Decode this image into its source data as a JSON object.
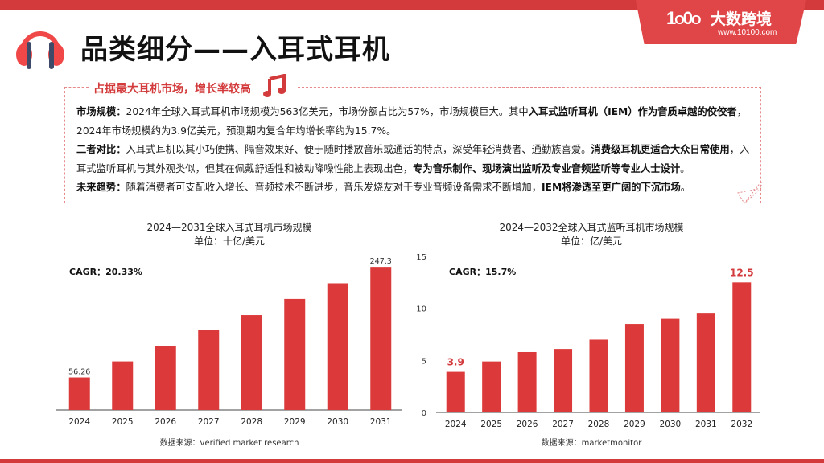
{
  "header": {
    "title": "品类细分——入耳式耳机",
    "icon": "headphones-icon"
  },
  "logo": {
    "mark": "1O0O",
    "name": "大数跨境",
    "url": "www.10100.com"
  },
  "summary": {
    "heading": "占据最大耳机市场，增长率较高",
    "heading_icon": "music-note-icon",
    "lines": [
      {
        "label": "市场规模：",
        "text": "2024年全球入耳式耳机市场规模为563亿美元，市场份额占比为57%，市场规模巨大。其中",
        "bold": "入耳式监听耳机（IEM）作为音质卓越的佼佼者",
        "tail": "，2024年市场规模约为3.9亿美元，预测期内复合年均增长率约为15.7%。"
      },
      {
        "label": "二者对比：",
        "text": "入耳式耳机以其小巧便携、隔音效果好、便于随时播放音乐或通话的特点，深受年轻消费者、通勤族喜爱。",
        "bold": "消费级耳机更适合大众日常使用",
        "tail": "，入耳式监听耳机与其外观类似，但其在佩戴舒适性和被动降噪性能上表现出色，",
        "bold2": "专为音乐制作、现场演出监听及专业音频监听等专业人士设计",
        "tail2": "。"
      },
      {
        "label": "未来趋势：",
        "text": "随着消费者可支配收入增长、音频技术不断进步，音乐发烧友对于专业音频设备需求不断增加，",
        "bold": "IEM将渗透至更广阔的下沉市场",
        "tail": "。"
      }
    ]
  },
  "colors": {
    "accent": "#d33a3b",
    "bar": "#dc3a3a",
    "headphone_band": "#f04848",
    "headphone_stem": "#3f4a68"
  },
  "chart_data": [
    {
      "type": "bar",
      "title": "2024—2031全球入耳式耳机市场规模",
      "subtitle": "单位：十亿/美元",
      "annotation": "CAGR：20.33%",
      "source": "数据来源：verified market research",
      "categories": [
        "2024",
        "2025",
        "2026",
        "2027",
        "2028",
        "2029",
        "2030",
        "2031"
      ],
      "values": [
        56.26,
        84,
        110,
        138,
        164,
        192,
        219,
        247.3
      ],
      "data_labels": {
        "2024": "56.26",
        "2031": "247.3"
      },
      "ylim": [
        0,
        260
      ],
      "y_axis_visible": false,
      "grid": false
    },
    {
      "type": "bar",
      "title": "2024—2032全球入耳式监听耳机市场规模",
      "subtitle": "单位：亿/美元",
      "annotation": "CAGR：15.7%",
      "source": "数据来源：marketmonitor",
      "categories": [
        "2024",
        "2025",
        "2026",
        "2027",
        "2028",
        "2029",
        "2030",
        "2031",
        "2032"
      ],
      "values": [
        3.9,
        4.9,
        5.8,
        6.1,
        7.0,
        8.5,
        9.0,
        9.5,
        12.5
      ],
      "data_labels": {
        "2024": "3.9",
        "2032": "12.5"
      },
      "yticks": [
        "0",
        "5",
        "10",
        "15"
      ],
      "ylim": [
        0,
        15
      ],
      "y_axis_visible": true,
      "grid": false
    }
  ]
}
